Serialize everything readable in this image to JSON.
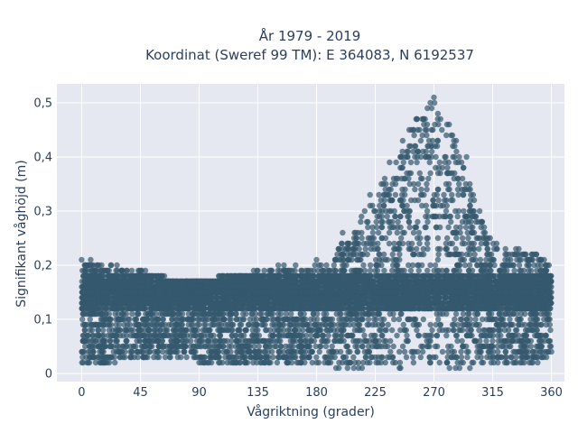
{
  "chart_data": {
    "type": "scatter",
    "title_line1": "År 1979 - 2019",
    "title_line2": "Koordinat (Sweref 99 TM): E 364083, N 6192537",
    "xlabel": "Vågriktning (grader)",
    "ylabel": "Signifikant våghöjd (m)",
    "xlim": [
      -19,
      370
    ],
    "ylim": [
      -0.015,
      0.535
    ],
    "x_ticks": [
      0,
      45,
      90,
      135,
      180,
      225,
      270,
      315,
      360
    ],
    "x_tick_labels": [
      "0",
      "45",
      "90",
      "135",
      "180",
      "225",
      "270",
      "315",
      "360"
    ],
    "y_ticks": [
      0,
      0.1,
      0.2,
      0.3,
      0.4,
      0.5
    ],
    "y_tick_labels": [
      "0",
      "0,1",
      "0,2",
      "0,3",
      "0,4",
      "0,5"
    ],
    "grid": true,
    "legend": "none",
    "marker_color": "#34586e",
    "background_color": "#e5e8f1",
    "series": [
      {
        "x_range": [
          0,
          360
        ],
        "envelope": [
          {
            "x": 0,
            "y_low": 0.02,
            "y_high": 0.21
          },
          {
            "x": 20,
            "y_low": 0.02,
            "y_high": 0.2
          },
          {
            "x": 45,
            "y_low": 0.03,
            "y_high": 0.19
          },
          {
            "x": 70,
            "y_low": 0.03,
            "y_high": 0.17
          },
          {
            "x": 90,
            "y_low": 0.02,
            "y_high": 0.17
          },
          {
            "x": 120,
            "y_low": 0.02,
            "y_high": 0.18
          },
          {
            "x": 135,
            "y_low": 0.02,
            "y_high": 0.19
          },
          {
            "x": 160,
            "y_low": 0.02,
            "y_high": 0.2
          },
          {
            "x": 180,
            "y_low": 0.02,
            "y_high": 0.2
          },
          {
            "x": 200,
            "y_low": 0.01,
            "y_high": 0.24
          },
          {
            "x": 220,
            "y_low": 0.01,
            "y_high": 0.31
          },
          {
            "x": 240,
            "y_low": 0.01,
            "y_high": 0.4
          },
          {
            "x": 255,
            "y_low": 0.01,
            "y_high": 0.47
          },
          {
            "x": 265,
            "y_low": 0.01,
            "y_high": 0.49
          },
          {
            "x": 272,
            "y_low": 0.01,
            "y_high": 0.51
          },
          {
            "x": 280,
            "y_low": 0.01,
            "y_high": 0.47
          },
          {
            "x": 290,
            "y_low": 0.01,
            "y_high": 0.4
          },
          {
            "x": 300,
            "y_low": 0.01,
            "y_high": 0.33
          },
          {
            "x": 310,
            "y_low": 0.02,
            "y_high": 0.26
          },
          {
            "x": 320,
            "y_low": 0.02,
            "y_high": 0.23
          },
          {
            "x": 335,
            "y_low": 0.02,
            "y_high": 0.23
          },
          {
            "x": 350,
            "y_low": 0.02,
            "y_high": 0.22
          },
          {
            "x": 360,
            "y_low": 0.03,
            "y_high": 0.2
          }
        ],
        "sample_points": [
          [
            0,
            0.21
          ],
          [
            3,
            0.2
          ],
          [
            5,
            0.02
          ],
          [
            10,
            0.19
          ],
          [
            27,
            0.2
          ],
          [
            45,
            0.19
          ],
          [
            60,
            0.05
          ],
          [
            90,
            0.02
          ],
          [
            110,
            0.17
          ],
          [
            135,
            0.19
          ],
          [
            155,
            0.2
          ],
          [
            180,
            0.21
          ],
          [
            200,
            0.26
          ],
          [
            221,
            0.33
          ],
          [
            236,
            0.39
          ],
          [
            246,
            0.43
          ],
          [
            257,
            0.47
          ],
          [
            262,
            0.47
          ],
          [
            265,
            0.49
          ],
          [
            270,
            0.51
          ],
          [
            273,
            0.48
          ],
          [
            275,
            0.47
          ],
          [
            280,
            0.46
          ],
          [
            287,
            0.43
          ],
          [
            295,
            0.4
          ],
          [
            300,
            0.33
          ],
          [
            305,
            0.3
          ],
          [
            313,
            0.25
          ],
          [
            318,
            0.24
          ],
          [
            324,
            0.2
          ],
          [
            335,
            0.23
          ],
          [
            345,
            0.22
          ],
          [
            352,
            0.21
          ],
          [
            356,
            0.19
          ],
          [
            360,
            0.04
          ]
        ]
      }
    ]
  }
}
